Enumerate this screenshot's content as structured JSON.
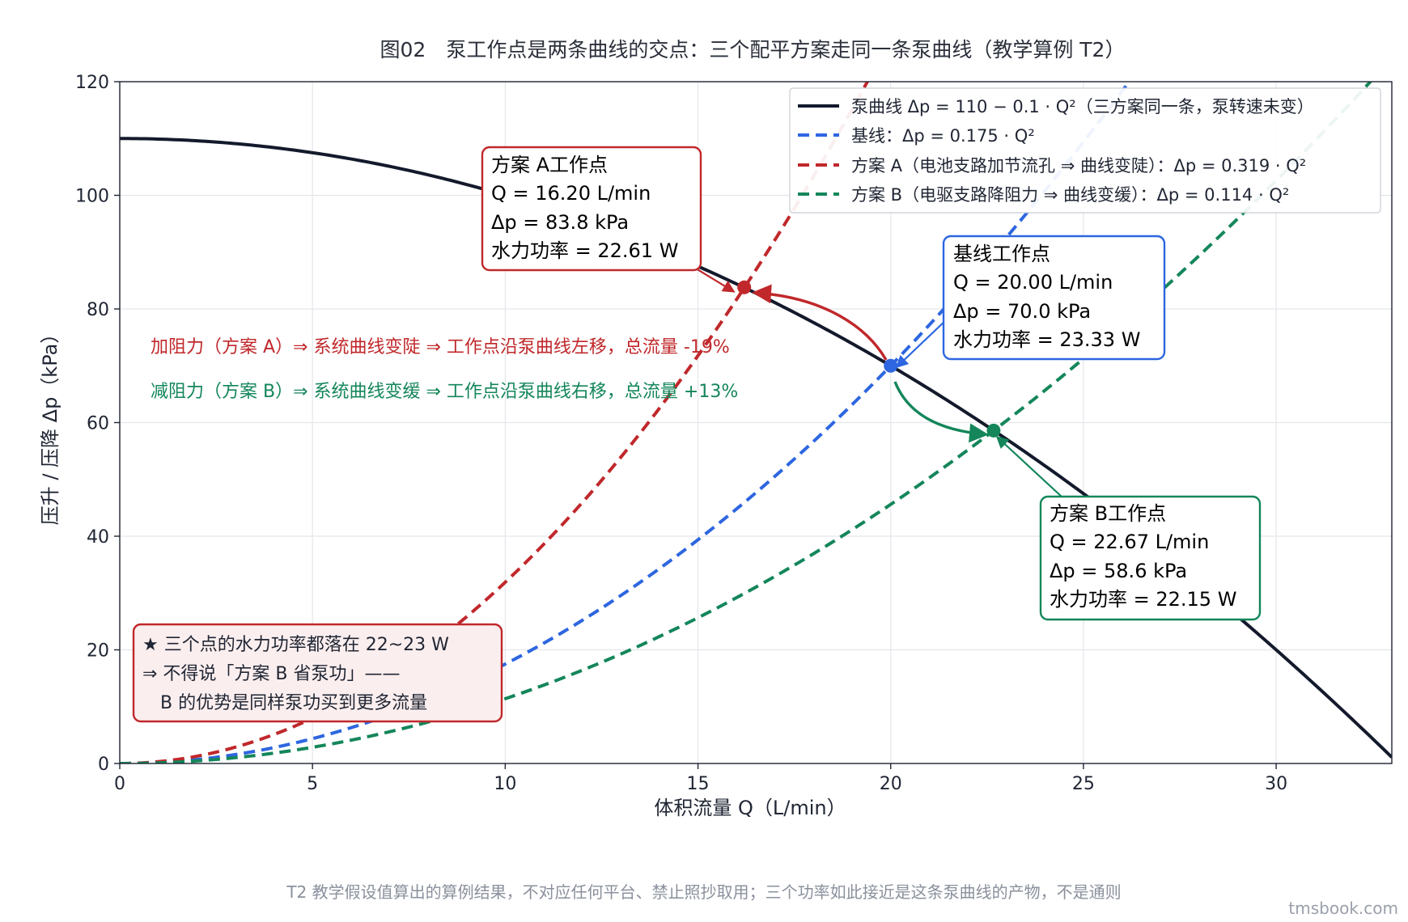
{
  "chart_data": {
    "type": "line",
    "title": "图02　泵工作点是两条曲线的交点：三个配平方案走同一条泵曲线（教学算例 T2）",
    "xlabel": "体积流量 Q（L/min）",
    "ylabel": "压升 / 压降 Δp（kPa）",
    "xlim": [
      0,
      33
    ],
    "ylim": [
      0,
      120
    ],
    "xticks": [
      0,
      5,
      10,
      15,
      20,
      25,
      30
    ],
    "yticks": [
      0,
      20,
      40,
      60,
      80,
      100,
      120
    ],
    "grid": true,
    "legend_position": "top-right",
    "series": [
      {
        "name": "泵曲线 Δp = 110 − 0.1 · Q²（三方案同一条，泵转速未变）",
        "style": "solid",
        "color": "#141a2c",
        "c0": 110,
        "k": -0.1
      },
      {
        "name": "基线：Δp = 0.175 · Q²",
        "style": "dashed",
        "color": "#2d66e0",
        "c0": 0,
        "k": 0.175
      },
      {
        "name": "方案 A（电池支路加节流孔 ⇒ 曲线变陡）：Δp = 0.319 · Q²",
        "style": "dashed",
        "color": "#c0282b",
        "c0": 0,
        "k": 0.319
      },
      {
        "name": "方案 B（电驱支路降阻力 ⇒ 曲线变缓）：Δp = 0.114 · Q²",
        "style": "dashed",
        "color": "#14865a",
        "c0": 0,
        "k": 0.114
      }
    ],
    "points": [
      {
        "id": "A",
        "x": 16.2,
        "y": 83.8,
        "color": "#c0282b"
      },
      {
        "id": "base",
        "x": 20.0,
        "y": 70.0,
        "color": "#2d66e0"
      },
      {
        "id": "B",
        "x": 22.67,
        "y": 58.6,
        "color": "#14865a"
      }
    ],
    "annotations": {
      "a_box": [
        "方案 A工作点",
        "Q = 16.20 L/min",
        "Δp = 83.8 kPa",
        "水力功率 = 22.61 W"
      ],
      "base_box": [
        "基线工作点",
        "Q = 20.00 L/min",
        "Δp = 70.0 kPa",
        "水力功率 = 23.33 W"
      ],
      "b_box": [
        "方案 B工作点",
        "Q = 22.67 L/min",
        "Δp = 58.6 kPa",
        "水力功率 = 22.15 W"
      ],
      "note_a": "加阻力（方案 A）⇒ 系统曲线变陡 ⇒ 工作点沿泵曲线左移，总流量 -19%",
      "note_b": "减阻力（方案 B）⇒ 系统曲线变缓 ⇒ 工作点沿泵曲线右移，总流量 +13%",
      "star_box": [
        "★ 三个点的水力功率都落在 22~23 W",
        "⇒ 不得说「方案 B 省泵功」——",
        "　B 的优势是同样泵功买到更多流量"
      ]
    }
  },
  "footnote": "T2 教学假设值算出的算例结果，不对应任何平台、禁止照抄取用；三个功率如此接近是这条泵曲线的产物，不是通则",
  "watermark": "tmsbook.com"
}
